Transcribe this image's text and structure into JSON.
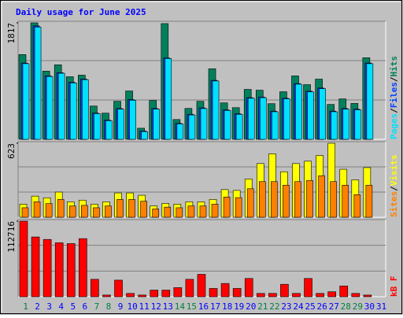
{
  "chart_data": {
    "type": "bar",
    "title": "Daily usage for June 2025",
    "categories": [
      "1",
      "2",
      "3",
      "4",
      "5",
      "6",
      "7",
      "8",
      "9",
      "10",
      "11",
      "12",
      "13",
      "14",
      "15",
      "16",
      "17",
      "18",
      "19",
      "20",
      "21",
      "22",
      "23",
      "24",
      "25",
      "26",
      "27",
      "28",
      "29",
      "30",
      "31"
    ],
    "category_colors": [
      "#008040",
      "#0000ff",
      "#0000ff",
      "#0000ff",
      "#0000ff",
      "#0000ff",
      "#008040",
      "#008040",
      "#0000ff",
      "#0000ff",
      "#0000ff",
      "#0000ff",
      "#0000ff",
      "#008040",
      "#008040",
      "#0000ff",
      "#0000ff",
      "#0000ff",
      "#0000ff",
      "#0000ff",
      "#008040",
      "#008040",
      "#0000ff",
      "#0000ff",
      "#0000ff",
      "#0000ff",
      "#0000ff",
      "#008040",
      "#008040",
      "#0000ff",
      "#0000ff"
    ],
    "legend_separator": "/",
    "panels": [
      {
        "ylim": [
          0,
          1817
        ],
        "yticks": [
          1817
        ],
        "series": [
          {
            "name": "Hits",
            "color": "#00805c",
            "values": [
              1322,
              1817,
              1063,
              1162,
              976,
              1001,
              519,
              408,
              593,
              754,
              173,
              606,
              1805,
              309,
              482,
              593,
              1100,
              569,
              494,
              779,
              766,
              556,
              742,
              989,
              853,
              939,
              544,
              630,
              560,
              1273,
              null
            ]
          },
          {
            "name": "Files",
            "color": "#0040ff",
            "values": [
              1190,
              1770,
              990,
              1040,
              890,
              940,
              410,
              300,
              480,
              620,
              130,
              480,
              1270,
              250,
              390,
              490,
              920,
              460,
              400,
              650,
              660,
              440,
              640,
              870,
              750,
              800,
              440,
              480,
              470,
              1190,
              null
            ]
          },
          {
            "name": "Pages",
            "color": "#00e0ff",
            "values": [
              1180,
              1750,
              980,
              1030,
              880,
              930,
              400,
              290,
              470,
              610,
              120,
              470,
              1260,
              240,
              380,
              480,
              910,
              450,
              390,
              640,
              650,
              430,
              630,
              860,
              740,
              790,
              430,
              470,
              460,
              1180,
              null
            ]
          }
        ]
      },
      {
        "ylim": [
          0,
          623
        ],
        "yticks": [
          623
        ],
        "series": [
          {
            "name": "Visits",
            "color": "#ffff00",
            "values": [
              110,
              178,
              164,
              212,
              130,
              144,
              110,
              130,
              205,
              205,
              185,
              96,
              116,
              110,
              130,
              130,
              150,
              233,
              226,
              322,
              452,
              534,
              383,
              452,
              472,
              520,
              623,
              404,
              315,
              418,
              null
            ]
          },
          {
            "name": "Sites",
            "color": "#ff8000",
            "values": [
              80,
              130,
              115,
              150,
              95,
              100,
              80,
              95,
              150,
              150,
              135,
              70,
              85,
              80,
              95,
              95,
              110,
              170,
              165,
              240,
              300,
              300,
              270,
              300,
              310,
              350,
              300,
              270,
              190,
              270,
              null
            ]
          }
        ]
      },
      {
        "ylim": [
          0,
          112716
        ],
        "yticks": [
          112716
        ],
        "series": [
          {
            "name": "kB F",
            "color": "#ff0000",
            "values": [
              112716,
              89180,
              85460,
              80500,
              79270,
              86700,
              26000,
              2500,
              24770,
              4950,
              2500,
              9900,
              9900,
              13600,
              26000,
              33440,
              12400,
              19800,
              12400,
              27250,
              4950,
              4950,
              18580,
              4950,
              27250,
              4950,
              7430,
              16100,
              4950,
              2500,
              null
            ]
          }
        ]
      }
    ]
  }
}
